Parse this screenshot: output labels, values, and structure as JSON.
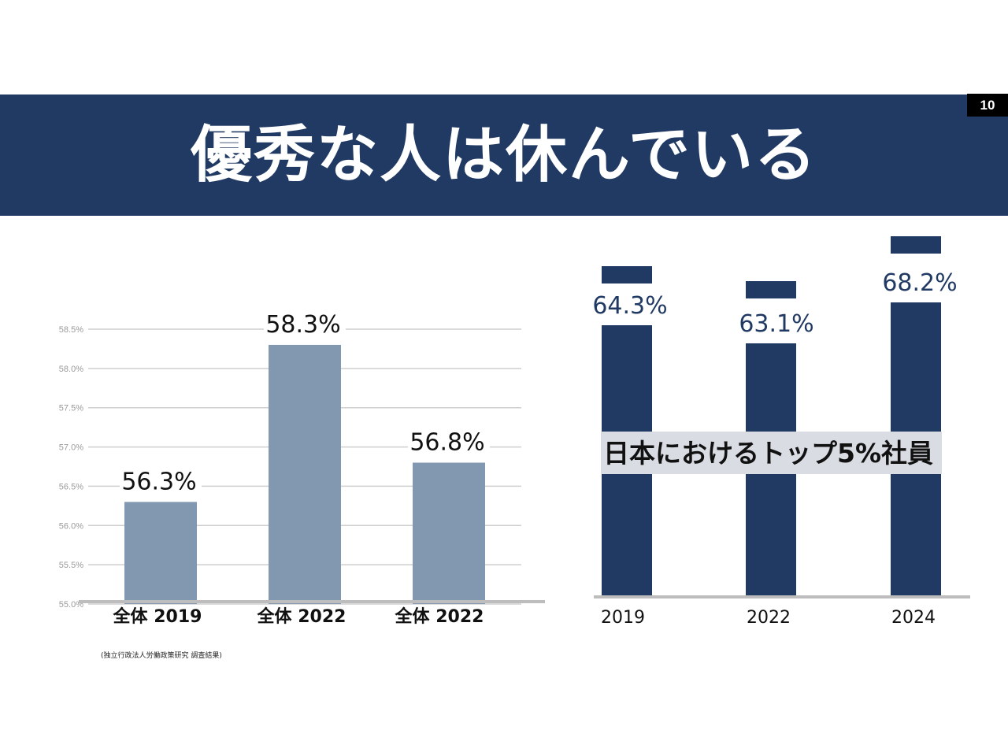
{
  "slide": {
    "page_number": "10",
    "title": "優秀な人は休んでいる",
    "source_note": "(独立行政法人労働政策研究 調査結果)"
  },
  "colors": {
    "banner": "#213a63",
    "bar_left": "#8297b0",
    "bar_right": "#213a63",
    "grid": "#cfcfcf",
    "axis": "#bdbdbd",
    "overlay_band": "#d9dde3"
  },
  "chart_data": [
    {
      "type": "bar",
      "title": "",
      "categories": [
        "全体 2019",
        "全体 2022",
        "全体 2022"
      ],
      "values": [
        56.3,
        58.3,
        56.8
      ],
      "data_labels": [
        "56.3%",
        "58.3%",
        "56.8%"
      ],
      "ylim": [
        55.0,
        58.5
      ],
      "yticks": [
        "55.0%",
        "55.5%",
        "56.0%",
        "56.5%",
        "57.0%",
        "57.5%",
        "58.0%",
        "58.5%"
      ],
      "ytick_values": [
        55.0,
        55.5,
        56.0,
        56.5,
        57.0,
        57.5,
        58.0,
        58.5
      ],
      "grid": true
    },
    {
      "type": "bar",
      "title": "",
      "categories": [
        "2019",
        "2022",
        "2024"
      ],
      "values": [
        64.3,
        63.1,
        68.2
      ],
      "data_labels": [
        "64.3%",
        "63.1%",
        "68.2%"
      ],
      "overlay_label": "日本におけるトップ5%社員",
      "grid": false
    }
  ]
}
